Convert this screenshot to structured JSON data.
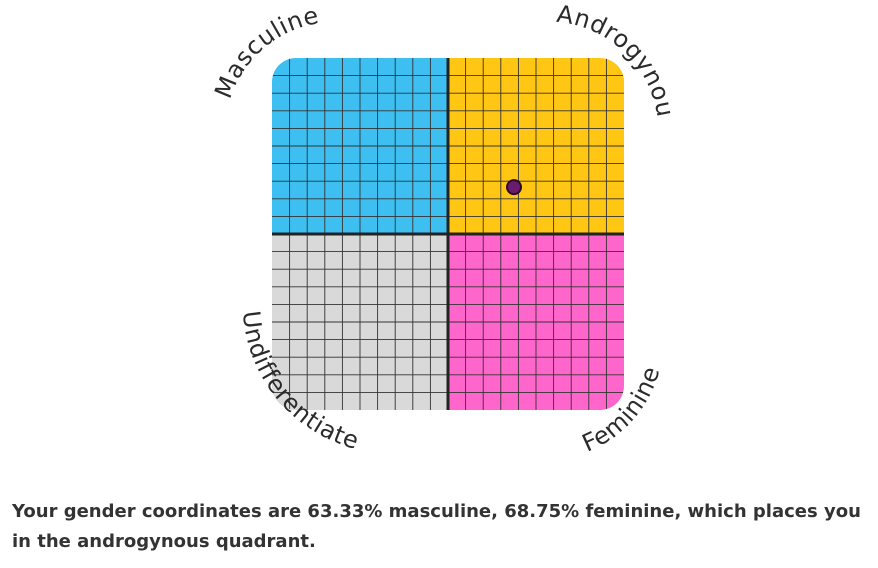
{
  "quadrant_labels": {
    "top_left": "Masculine",
    "top_right": "Androgynous",
    "bottom_left": "Undifferentiated",
    "bottom_right": "Feminine"
  },
  "chart_data": {
    "type": "scatter",
    "quadrants": [
      {
        "name": "Masculine",
        "color": "#3dbff1"
      },
      {
        "name": "Androgynous",
        "color": "#ffc613"
      },
      {
        "name": "Undifferentiated",
        "color": "#d9d9d9"
      },
      {
        "name": "Feminine",
        "color": "#ff66cc"
      }
    ],
    "grid": true,
    "point": {
      "masculine": 63.33,
      "feminine": 68.75,
      "color": "#6b1b6b"
    }
  },
  "result_text": "Your gender coordinates are 63.33% masculine, 68.75% feminine, which places you in the androgynous quadrant."
}
